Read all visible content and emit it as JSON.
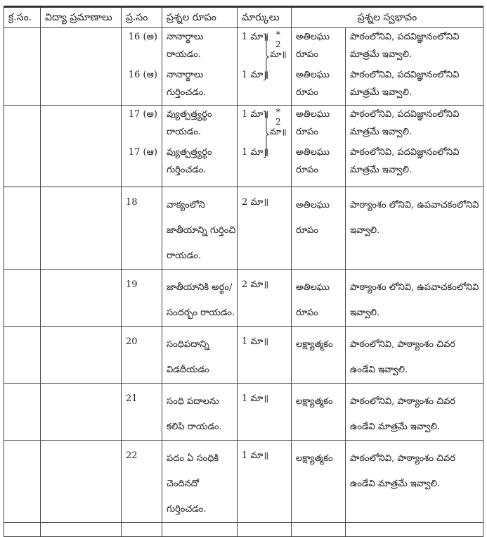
{
  "headers": [
    "క్ర.సం.",
    "విద్యా ప్రమాణాలు",
    "ప్ర.సం",
    "ప్రశ్నల రూపం",
    "మార్కులు",
    "ప్రశ్నల స్వభావం"
  ],
  "group16": {
    "items": [
      {
        "num": "16 (అ)",
        "form": [
          "నానార్థాలు",
          "రాయడం."
        ],
        "marks": "1 మా॥",
        "type": [
          "అతిలఘు",
          "రూపం"
        ],
        "nature": [
          "పాఠంలోనివి, పదవిజ్ఞానంలోనివి",
          "మాత్రమే ఇవ్వాలి."
        ]
      },
      {
        "num": "16 (ఆ)",
        "form": [
          "నానార్థాలు",
          "గుర్తించడం."
        ],
        "marks": "1 మా॥",
        "type": [
          "అతిలఘు",
          "రూపం"
        ],
        "nature": [
          "పాఠంలోనివి, పదవిజ్ఞానంలోనివి",
          "మాత్రమే ఇవ్వాలి."
        ]
      }
    ],
    "brace_star": "*",
    "brace_num": "2",
    "brace_unit": "మా॥"
  },
  "group17": {
    "items": [
      {
        "num": "17 (అ)",
        "form": [
          "వ్యుత్పత్త్యర్థం",
          "రాయడం."
        ],
        "marks": "1 మా॥",
        "type": [
          "అతిలఘు",
          "రూపం"
        ],
        "nature": [
          "పాఠంలోనివి, పదవిజ్ఞానంలోనివి",
          "మాత్రమే ఇవ్వాలి."
        ]
      },
      {
        "num": "17 (ఆ)",
        "form": [
          "వ్యుత్పత్త్యర్థం",
          "గుర్తించడం."
        ],
        "marks": "1 మా॥",
        "type": [
          "అతిలఘు",
          "రూపం"
        ],
        "nature": [
          "పాఠంలోనివి, పదవిజ్ఞానంలోనివి",
          "మాత్రమే ఇవ్వాలి."
        ]
      }
    ],
    "brace_star": "*",
    "brace_num": "2",
    "brace_unit": "మా॥"
  },
  "rows": [
    {
      "num": "18",
      "form": [
        "వాక్యంలోని",
        "జాతీయాన్ని గుర్తించి",
        "రాయడం."
      ],
      "marks": "2 మా॥",
      "type": [
        "అతిలఘు",
        "రూపం"
      ],
      "nature": [
        "పాఠ్యాంశం లోనివి, ఉపవాచకంలోనివి",
        "ఇవ్వాలి."
      ]
    },
    {
      "num": "19",
      "form": [
        "జాతీయానికి అర్థం/",
        "సందర్భం రాయడం."
      ],
      "marks": "2 మా॥",
      "type": [
        "అతిలఘు",
        "రూపం"
      ],
      "nature": [
        "పాఠ్యాంశం లోనివి, ఉపవాచకంలోనివి",
        "ఇవ్వాలి."
      ]
    },
    {
      "num": "20",
      "form": [
        "సంధిపదాన్ని",
        "విడదీయడం"
      ],
      "marks": "1 మా॥",
      "type": [
        "లక్ష్యాత్మకం"
      ],
      "nature": [
        "పాఠంలోనివి, పాఠ్యాంశం చివర",
        "ఉండేవి ఇవ్వాలి."
      ]
    },
    {
      "num": "21",
      "form": [
        "సంధి పదాలను",
        "కలిపి రాయడం."
      ],
      "marks": "1 మా॥",
      "type": [
        "లక్ష్యాత్మకం"
      ],
      "nature": [
        "పాఠంలోనివి, పాఠ్యాంశం చివర",
        "ఉండేవి మాత్రమే ఇవ్వాలి."
      ]
    },
    {
      "num": "22",
      "form": [
        "పదం ఏ సంధికి",
        "చెందినదో",
        "గుర్తించడం."
      ],
      "marks": "1 మా॥",
      "type": [
        "లక్ష్యాత్మకం"
      ],
      "nature": [
        "పాఠంలోనివి, పాఠ్యాంశం చివర",
        "ఉండేవి మాత్రమే ఇవ్వాలి."
      ]
    }
  ]
}
